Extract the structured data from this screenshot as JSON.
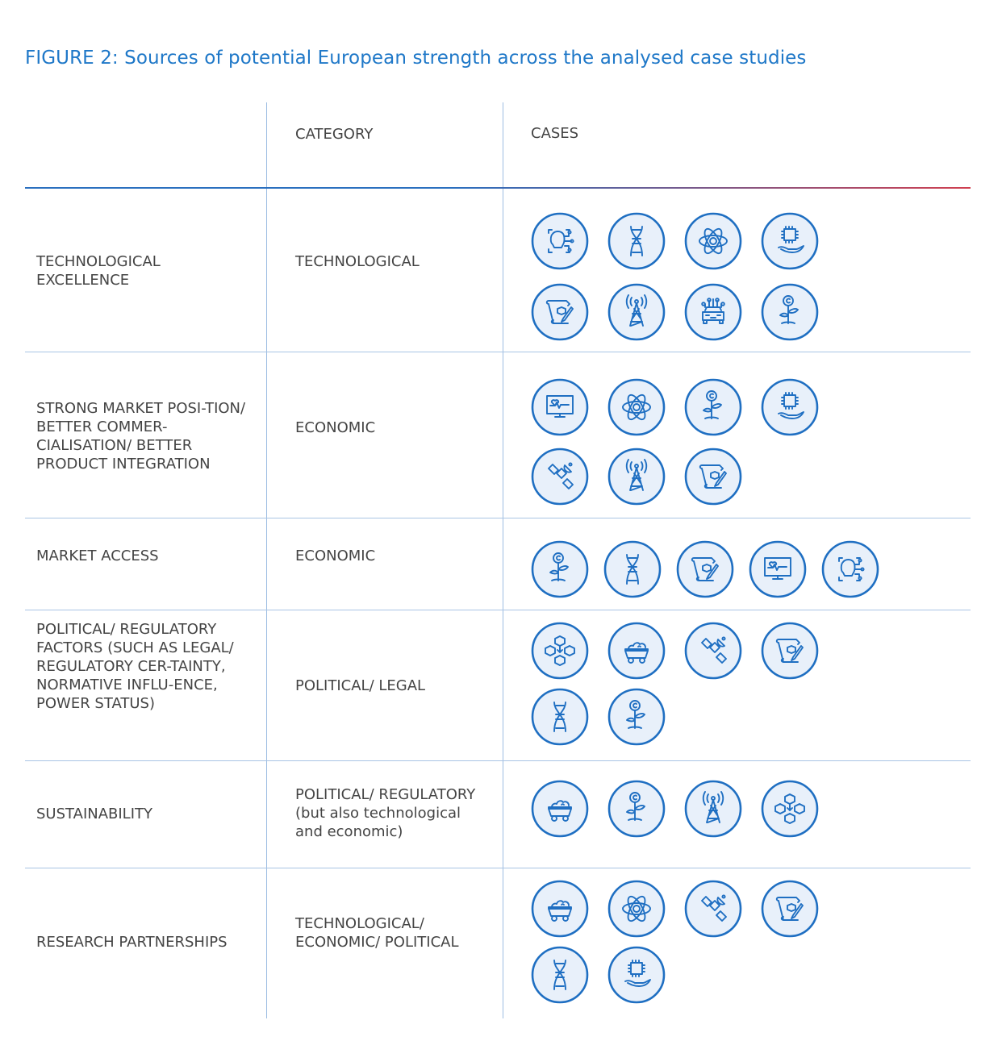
{
  "title": "FIGURE 2:  Sources of potential European strength across the analysed case studies",
  "header": {
    "col1": "",
    "col2": "CATEGORY",
    "col3": "CASES"
  },
  "colors": {
    "accent": "#1f78c8",
    "icon_fill": "#e8f0fa",
    "icon_stroke": "#1f6fc2",
    "divider": "#a9c4e4",
    "header_rule_end": "#d04050"
  },
  "rows": [
    {
      "source": "TECHNOLOGICAL EXCELLENCE",
      "category": "TECHNOLOGICAL",
      "cases": [
        "ai-face",
        "dna",
        "atom",
        "chip-hand",
        "blueprint",
        "antenna-tower",
        "connected-car",
        "plant-coin"
      ]
    },
    {
      "source": "STRONG MARKET POSI-TION/ BETTER COMMER-CIALISATION/ BETTER PRODUCT INTEGRATION",
      "category": "ECONOMIC",
      "cases": [
        "health-monitor",
        "atom",
        "plant-coin",
        "chip-hand",
        "satellite",
        "antenna-tower",
        "blueprint"
      ]
    },
    {
      "source": "MARKET ACCESS",
      "category": "ECONOMIC",
      "cases": [
        "plant-coin",
        "dna",
        "blueprint",
        "health-monitor",
        "ai-face"
      ]
    },
    {
      "source": "POLITICAL/ REGULATORY FACTORS (SUCH AS LEGAL/ REGULATORY CER-TAINTY, NORMATIVE INFLU-ENCE, POWER STATUS)",
      "category": "POLITICAL/ LEGAL",
      "cases": [
        "blockchain",
        "mine-cart",
        "satellite",
        "blueprint",
        "dna",
        "plant-coin"
      ]
    },
    {
      "source": "SUSTAINABILITY",
      "category": "POLITICAL/ REGULATORY (but also technological and economic)",
      "cases": [
        "mine-cart",
        "plant-coin",
        "antenna-tower",
        "blockchain"
      ]
    },
    {
      "source": "RESEARCH PARTNERSHIPS",
      "category": "TECHNOLOGICAL/ ECONOMIC/ POLITICAL",
      "cases": [
        "mine-cart",
        "atom",
        "satellite",
        "blueprint",
        "dna",
        "chip-hand"
      ]
    }
  ]
}
